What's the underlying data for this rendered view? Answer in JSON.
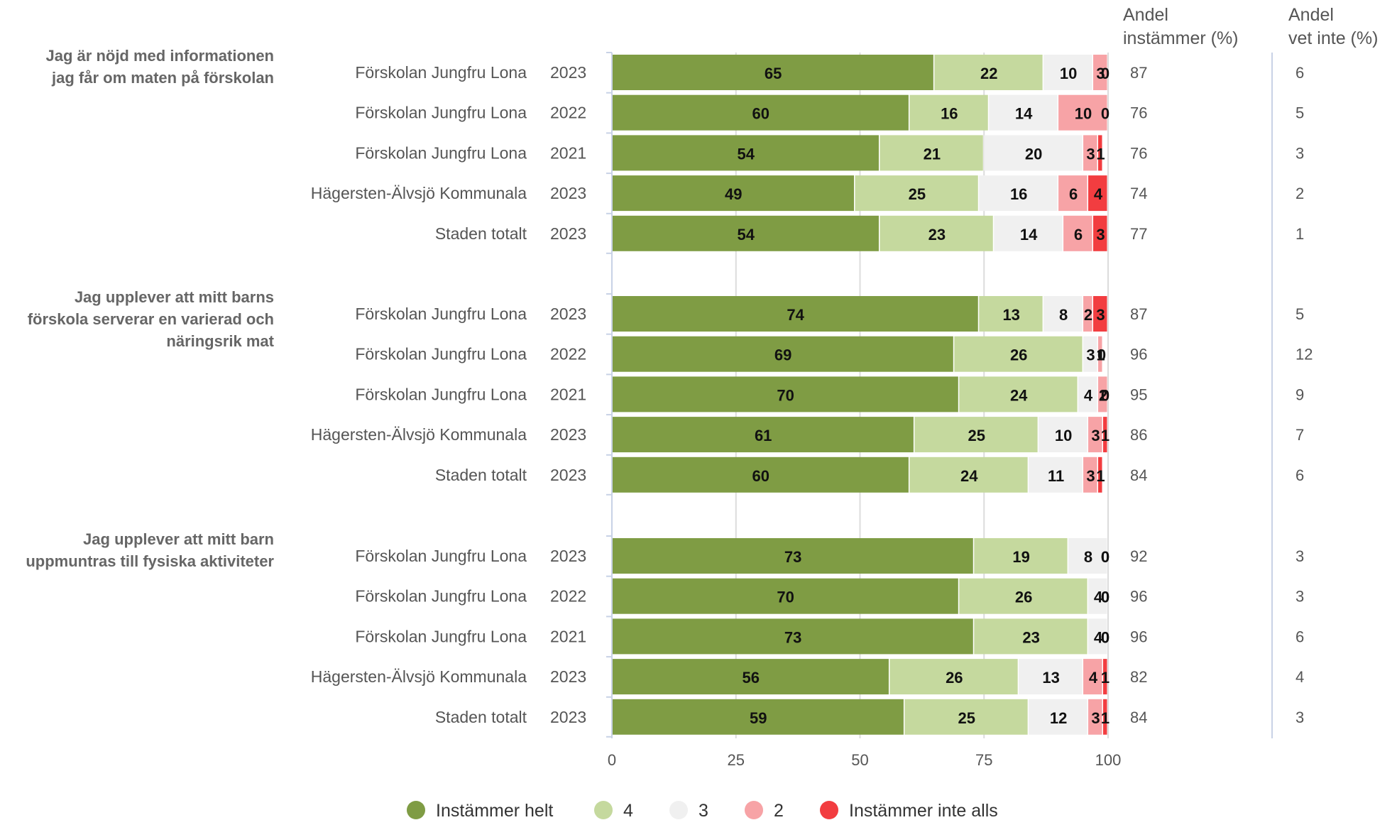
{
  "chart_data": {
    "type": "bar",
    "stacked": true,
    "orientation": "horizontal",
    "xlim": [
      0,
      100
    ],
    "x_ticks": [
      0,
      25,
      50,
      75,
      100
    ],
    "grid": true,
    "legend_position": "bottom",
    "series": [
      {
        "name": "Instämmer helt",
        "color": "#7f9c44"
      },
      {
        "name": "4",
        "color": "#c5d99e"
      },
      {
        "name": "3",
        "color": "#f0f0f0"
      },
      {
        "name": "2",
        "color": "#f7a3a6"
      },
      {
        "name": "Instämmer inte alls",
        "color": "#f23d40"
      }
    ],
    "column_headers": {
      "andel_instammer": [
        "Andel",
        "instämmer (%)"
      ],
      "andel_vet_inte": [
        "Andel",
        "vet inte (%)"
      ]
    },
    "groups": [
      {
        "question": [
          "Jag är nöjd med informationen",
          "jag får om maten på förskolan"
        ],
        "rows": [
          {
            "label": "Förskolan Jungfru Lona",
            "year": "2023",
            "values": [
              65,
              22,
              10,
              3,
              0
            ],
            "andel_instammer": "87",
            "andel_vet_inte": "6"
          },
          {
            "label": "Förskolan Jungfru Lona",
            "year": "2022",
            "values": [
              60,
              16,
              14,
              10,
              0
            ],
            "andel_instammer": "76",
            "andel_vet_inte": "5"
          },
          {
            "label": "Förskolan Jungfru Lona",
            "year": "2021",
            "values": [
              54,
              21,
              20,
              3,
              1
            ],
            "andel_instammer": "76",
            "andel_vet_inte": "3"
          },
          {
            "label": "Hägersten-Älvsjö Kommunala",
            "year": "2023",
            "values": [
              49,
              25,
              16,
              6,
              4
            ],
            "andel_instammer": "74",
            "andel_vet_inte": "2"
          },
          {
            "label": "Staden totalt",
            "year": "2023",
            "values": [
              54,
              23,
              14,
              6,
              3
            ],
            "andel_instammer": "77",
            "andel_vet_inte": "1"
          }
        ]
      },
      {
        "question": [
          "Jag upplever att mitt barns",
          "förskola serverar en varierad och",
          "näringsrik mat"
        ],
        "rows": [
          {
            "label": "Förskolan Jungfru Lona",
            "year": "2023",
            "values": [
              74,
              13,
              8,
              2,
              3
            ],
            "andel_instammer": "87",
            "andel_vet_inte": "5"
          },
          {
            "label": "Förskolan Jungfru Lona",
            "year": "2022",
            "values": [
              69,
              26,
              3,
              1,
              0
            ],
            "andel_instammer": "96",
            "andel_vet_inte": "12"
          },
          {
            "label": "Förskolan Jungfru Lona",
            "year": "2021",
            "values": [
              70,
              24,
              4,
              2,
              0
            ],
            "andel_instammer": "95",
            "andel_vet_inte": "9"
          },
          {
            "label": "Hägersten-Älvsjö Kommunala",
            "year": "2023",
            "values": [
              61,
              25,
              10,
              3,
              1
            ],
            "andel_instammer": "86",
            "andel_vet_inte": "7"
          },
          {
            "label": "Staden totalt",
            "year": "2023",
            "values": [
              60,
              24,
              11,
              3,
              1
            ],
            "andel_instammer": "84",
            "andel_vet_inte": "6"
          }
        ]
      },
      {
        "question": [
          "Jag upplever att mitt barn",
          "uppmuntras till fysiska aktiviteter"
        ],
        "rows": [
          {
            "label": "Förskolan Jungfru Lona",
            "year": "2023",
            "values": [
              73,
              19,
              8,
              0,
              0
            ],
            "andel_instammer": "92",
            "andel_vet_inte": "3"
          },
          {
            "label": "Förskolan Jungfru Lona",
            "year": "2022",
            "values": [
              70,
              26,
              4,
              0,
              0
            ],
            "andel_instammer": "96",
            "andel_vet_inte": "3"
          },
          {
            "label": "Förskolan Jungfru Lona",
            "year": "2021",
            "values": [
              73,
              23,
              4,
              0,
              0
            ],
            "andel_instammer": "96",
            "andel_vet_inte": "6"
          },
          {
            "label": "Hägersten-Älvsjö Kommunala",
            "year": "2023",
            "values": [
              56,
              26,
              13,
              4,
              1
            ],
            "andel_instammer": "82",
            "andel_vet_inte": "4"
          },
          {
            "label": "Staden totalt",
            "year": "2023",
            "values": [
              59,
              25,
              12,
              3,
              1
            ],
            "andel_instammer": "84",
            "andel_vet_inte": "3"
          }
        ]
      }
    ]
  }
}
